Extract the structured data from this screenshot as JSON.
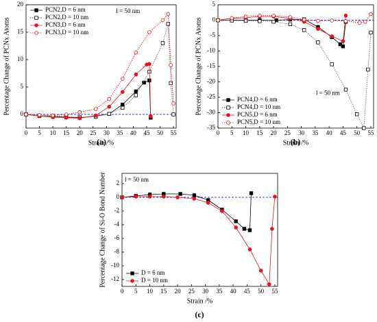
{
  "chart_data": [
    {
      "type": "line",
      "caption": "(a)",
      "xlabel": "Strain  /%",
      "ylabel": "Percentage Change of PCNx Atoms",
      "annotation": "l = 50 nm",
      "xlim": [
        0,
        56
      ],
      "ylim": [
        -2.5,
        20
      ],
      "xticks": [
        0,
        5,
        10,
        15,
        20,
        25,
        30,
        35,
        40,
        45,
        50,
        55
      ],
      "yticks": [
        0,
        5,
        10,
        15,
        20
      ],
      "reference_line": 0,
      "reference_color": "#3333ff",
      "legend": "upper left",
      "series": [
        {
          "name": "PCN2,D = 6 nm",
          "color": "#000000",
          "marker": "square-filled",
          "line": "solid",
          "x": [
            0,
            5,
            10,
            15,
            20,
            26,
            31,
            36,
            41,
            44,
            46,
            46.5
          ],
          "values": [
            0,
            -0.3,
            -0.4,
            -0.5,
            -0.6,
            -0.3,
            0.1,
            1.8,
            4.2,
            5.8,
            6.2,
            -0.6
          ]
        },
        {
          "name": "PCN2,D = 10 nm",
          "color": "#000000",
          "marker": "square-open",
          "line": "dotted",
          "x": [
            0,
            5,
            10,
            15,
            20,
            26,
            31,
            36,
            41,
            46,
            51,
            53,
            54,
            55
          ],
          "values": [
            0,
            -0.2,
            -0.3,
            -0.4,
            -0.5,
            -0.4,
            0.1,
            1.2,
            3.5,
            7.8,
            13,
            16.5,
            5.7,
            0
          ]
        },
        {
          "name": "PCN3,D = 6 nm",
          "color": "#e8141c",
          "marker": "circle-filled",
          "line": "solid",
          "x": [
            0,
            5,
            10,
            15,
            20,
            26,
            31,
            36,
            41,
            45,
            46,
            46.5
          ],
          "values": [
            0,
            -0.3,
            -0.5,
            -0.6,
            -0.7,
            -0.2,
            1.4,
            4.1,
            7.3,
            9.1,
            9.2,
            -0.3
          ]
        },
        {
          "name": "PCN3,D = 10 nm",
          "color": "#e8141c",
          "marker": "circle-open",
          "line": "dotted",
          "x": [
            0,
            5,
            10,
            15,
            20,
            26,
            31,
            36,
            41,
            46,
            51,
            53,
            54,
            55
          ],
          "values": [
            0,
            -0.1,
            -0.2,
            0,
            0.4,
            1,
            2.8,
            6.5,
            11.3,
            15,
            17.2,
            18.3,
            9,
            2
          ]
        }
      ]
    },
    {
      "type": "line",
      "caption": "(b)",
      "xlabel": "Strain  /%",
      "ylabel": "Percentage Change of PCNx Atoms",
      "annotation": "l = 50 nm",
      "xlim": [
        0,
        56
      ],
      "ylim": [
        -35,
        5
      ],
      "xticks": [
        0,
        5,
        10,
        15,
        20,
        25,
        30,
        35,
        40,
        45,
        50,
        55
      ],
      "yticks": [
        5,
        0,
        -5,
        -10,
        -15,
        -20,
        -25,
        -30,
        -35
      ],
      "reference_line": 0,
      "reference_color": "#3333ff",
      "legend": "lower left",
      "series": [
        {
          "name": "PCN4,D = 6 nm",
          "color": "#000000",
          "marker": "square-filled",
          "line": "solid",
          "x": [
            0,
            5,
            10,
            15,
            21,
            26,
            31,
            36,
            41,
            44,
            45,
            46
          ],
          "values": [
            0,
            0,
            0,
            0,
            0,
            0.2,
            0.3,
            -2.2,
            -5.5,
            -7.8,
            -8.5,
            -0.5
          ]
        },
        {
          "name": "PCN4,D = 10 nm",
          "color": "#000000",
          "marker": "square-open",
          "line": "dotted",
          "x": [
            0,
            5,
            10,
            15,
            20,
            26,
            31,
            36,
            41,
            46,
            50,
            52.5,
            54,
            55
          ],
          "values": [
            0,
            -0.1,
            -0.2,
            -0.3,
            -0.5,
            -1.3,
            -3.2,
            -7.2,
            -14.3,
            -22.5,
            -30.5,
            -35,
            -16,
            -4
          ]
        },
        {
          "name": "PCN5,D = 6 nm",
          "color": "#e8141c",
          "marker": "circle-filled",
          "line": "solid",
          "x": [
            0,
            5,
            10,
            15,
            20,
            26,
            31,
            36,
            41,
            45,
            46
          ],
          "values": [
            0,
            0.6,
            0.8,
            1.2,
            1.2,
            0.6,
            -0.5,
            -2.8,
            -5.2,
            -6.8,
            1.5
          ]
        },
        {
          "name": "PCN5,D = 10 nm",
          "color": "#e8141c",
          "marker": "circle-open",
          "line": "dotted",
          "x": [
            0,
            5,
            10,
            15,
            20,
            26,
            31,
            36,
            41,
            46,
            51,
            53,
            55
          ],
          "values": [
            0,
            0.7,
            1.2,
            1.5,
            1.5,
            1,
            0.2,
            -0.2,
            -0.1,
            -0.3,
            -0.8,
            -0.5,
            2
          ]
        }
      ]
    },
    {
      "type": "line",
      "caption": "(c)",
      "xlabel": "Strain  /%",
      "ylabel": "Percentage Change of Si-O Bond Number",
      "annotation": "l = 50 nm",
      "xlim": [
        0,
        56
      ],
      "ylim": [
        -13,
        3.5
      ],
      "xticks": [
        0,
        5,
        10,
        15,
        20,
        25,
        30,
        35,
        40,
        45,
        50,
        55
      ],
      "yticks": [
        2,
        0,
        -2,
        -4,
        -6,
        -8,
        -10,
        -12
      ],
      "reference_line": 0,
      "reference_color": "#3333ff",
      "legend": "lower left",
      "series": [
        {
          "name": "D = 6 nm",
          "color": "#000000",
          "marker": "square-filled",
          "line": "solid",
          "x": [
            0,
            5,
            10,
            15,
            21,
            26,
            31,
            36,
            41,
            44,
            46,
            46.5
          ],
          "values": [
            0,
            0.2,
            0.4,
            0.5,
            0.5,
            0.3,
            -0.4,
            -1.8,
            -3.5,
            -4.6,
            -4.8,
            0.6
          ]
        },
        {
          "name": "D = 10 nm",
          "color": "#e8141c",
          "marker": "circle-filled",
          "line": "solid",
          "x": [
            0,
            5,
            10,
            15,
            20,
            26,
            31,
            36,
            41,
            46,
            50,
            53,
            54,
            55
          ],
          "values": [
            0,
            0.1,
            0.1,
            0.1,
            0,
            -0.2,
            -0.8,
            -2,
            -4.4,
            -7.6,
            -10.7,
            -12.7,
            -4.6,
            0.1
          ]
        }
      ]
    }
  ]
}
